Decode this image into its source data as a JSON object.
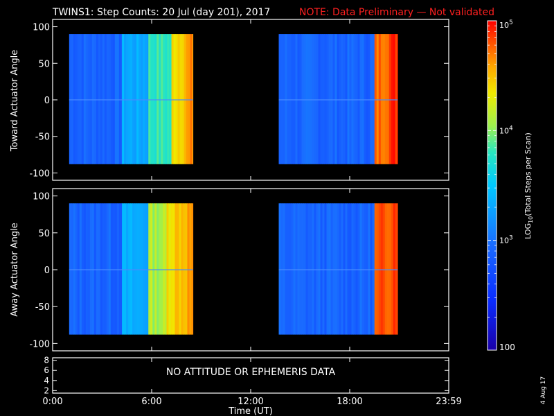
{
  "title": "TWINS1: Step Counts: 20 Jul (day 201), 2017",
  "note": "NOTE: Data Preliminary — Not validated",
  "date_stamp": "4 Aug 17",
  "colors": {
    "background": "#000000",
    "foreground": "#ffffff",
    "note": "#ff2020"
  },
  "chart_data": [
    {
      "type": "heatmap",
      "panel": "toward",
      "ylabel": "Toward Actuator Angle",
      "ylim": [
        -110,
        110
      ],
      "yticks": [
        100,
        50,
        0,
        -50,
        -100
      ],
      "xlim": [
        0,
        24
      ],
      "data_extent": {
        "x": [
          [
            1.0,
            8.5
          ],
          [
            13.7,
            20.9
          ]
        ],
        "y": [
          -88,
          90
        ]
      },
      "intensity_profile": [
        {
          "x_range": [
            1.0,
            4.2
          ],
          "level": "low"
        },
        {
          "x_range": [
            4.2,
            5.8
          ],
          "level": "low-mid"
        },
        {
          "x_range": [
            5.8,
            7.2
          ],
          "level": "mid"
        },
        {
          "x_range": [
            7.2,
            8.5
          ],
          "level": "high"
        },
        {
          "x_range": [
            13.7,
            19.5
          ],
          "level": "low"
        },
        {
          "x_range": [
            19.5,
            20.9
          ],
          "level": "very-high"
        }
      ]
    },
    {
      "type": "heatmap",
      "panel": "away",
      "ylabel": "Away Actuator Angle",
      "ylim": [
        -110,
        110
      ],
      "yticks": [
        100,
        50,
        0,
        -50,
        -100
      ],
      "xlim": [
        0,
        24
      ],
      "data_extent": {
        "x": [
          [
            1.0,
            8.5
          ],
          [
            13.7,
            20.9
          ]
        ],
        "y": [
          -88,
          90
        ]
      },
      "intensity_profile": [
        {
          "x_range": [
            1.0,
            4.2
          ],
          "level": "low"
        },
        {
          "x_range": [
            4.2,
            5.8
          ],
          "level": "low-mid"
        },
        {
          "x_range": [
            5.8,
            6.9
          ],
          "level": "mid-high"
        },
        {
          "x_range": [
            6.9,
            8.5
          ],
          "level": "high"
        },
        {
          "x_range": [
            13.7,
            19.5
          ],
          "level": "low"
        },
        {
          "x_range": [
            19.5,
            20.9
          ],
          "level": "very-high"
        }
      ]
    }
  ],
  "ephemeris_panel": {
    "message": "NO ATTITUDE OR EPHEMERIS DATA",
    "yticks": [
      8,
      6,
      4,
      2
    ],
    "ylim": [
      1.5,
      8.5
    ]
  },
  "xaxis": {
    "label": "Time (UT)",
    "ticks": [
      {
        "label": "0:00",
        "value": 0
      },
      {
        "label": "6:00",
        "value": 6
      },
      {
        "label": "12:00",
        "value": 12
      },
      {
        "label": "18:00",
        "value": 18
      },
      {
        "label": "23:59",
        "value": 24
      }
    ]
  },
  "colorbar": {
    "label_prefix": "LOG",
    "label_sub": "10",
    "label_suffix": "(Total Steps per Scan)",
    "scale": "log",
    "range": [
      100,
      100000
    ],
    "ticks": [
      {
        "value": 100,
        "label": "100"
      },
      {
        "value": 1000,
        "base": "10",
        "exp": "3"
      },
      {
        "value": 10000,
        "base": "10",
        "exp": "4"
      },
      {
        "value": 100000,
        "base": "10",
        "exp": "5"
      }
    ]
  }
}
